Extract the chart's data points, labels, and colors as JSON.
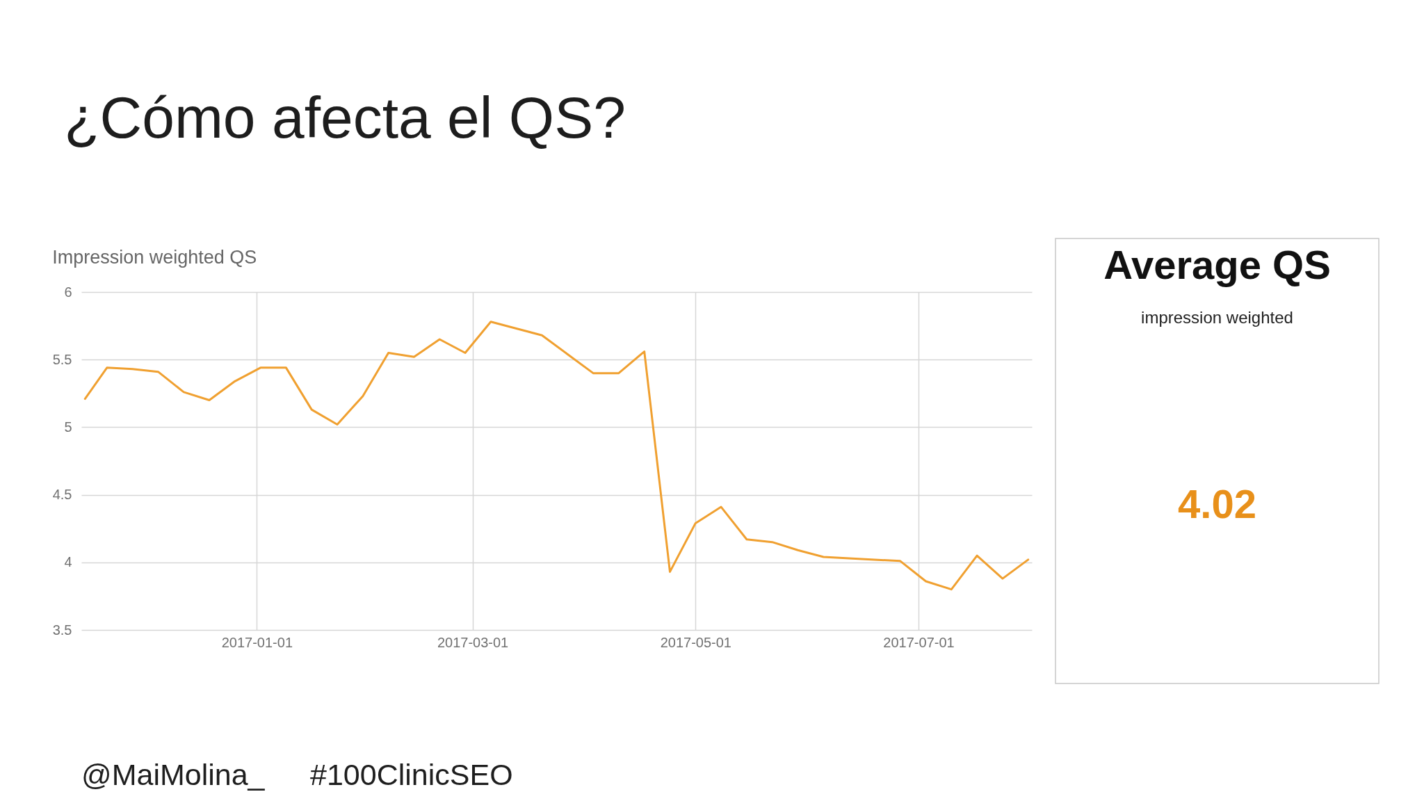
{
  "chart_data": [
    {
      "type": "line",
      "title": "¿Cómo afecta el QS?",
      "subtitle": "Impression weighted QS",
      "x": [
        "2016-11-15",
        "2016-11-21",
        "2016-11-28",
        "2016-12-05",
        "2016-12-12",
        "2016-12-19",
        "2016-12-26",
        "2017-01-02",
        "2017-01-09",
        "2017-01-16",
        "2017-01-23",
        "2017-01-30",
        "2017-02-06",
        "2017-02-13",
        "2017-02-20",
        "2017-02-27",
        "2017-03-06",
        "2017-03-13",
        "2017-03-20",
        "2017-03-27",
        "2017-04-03",
        "2017-04-10",
        "2017-04-17",
        "2017-04-24",
        "2017-05-01",
        "2017-05-08",
        "2017-05-15",
        "2017-05-22",
        "2017-05-29",
        "2017-06-05",
        "2017-06-12",
        "2017-06-19",
        "2017-06-26",
        "2017-07-03",
        "2017-07-10",
        "2017-07-17",
        "2017-07-24",
        "2017-07-31"
      ],
      "values": [
        5.21,
        5.44,
        5.43,
        5.41,
        5.26,
        5.2,
        5.34,
        5.44,
        5.44,
        5.13,
        5.02,
        5.23,
        5.55,
        5.52,
        5.65,
        5.55,
        5.78,
        5.73,
        5.68,
        5.54,
        5.4,
        5.4,
        5.56,
        3.93,
        4.29,
        4.41,
        4.17,
        4.15,
        4.09,
        4.04,
        4.03,
        4.02,
        4.01,
        3.86,
        3.8,
        4.05,
        3.88,
        4.02
      ],
      "color": "#f0a030",
      "xlim": [
        "2016-11-14",
        "2017-08-01"
      ],
      "xticks": [
        "2017-01-01",
        "2017-03-01",
        "2017-05-01",
        "2017-07-01"
      ],
      "ylim": [
        3.5,
        6
      ],
      "yticks": [
        3.5,
        4,
        4.5,
        5,
        5.5,
        6
      ],
      "grid": true,
      "annotations": [
        "@MaiMolina_",
        "#100ClinicSEO"
      ]
    },
    {
      "type": "other",
      "title": "Average QS",
      "subtitle": "impression weighted",
      "annotations": [
        "4.02"
      ]
    }
  ]
}
